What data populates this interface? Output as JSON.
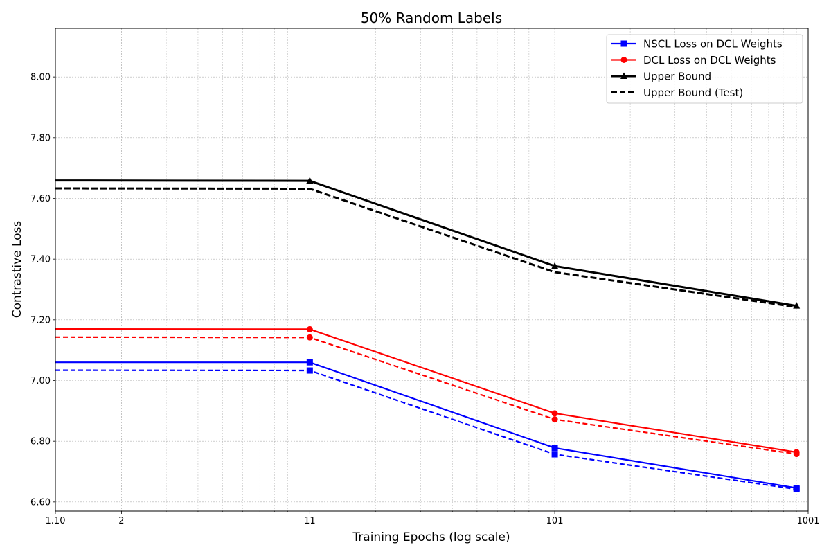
{
  "chart_data": {
    "type": "line",
    "title": "50% Random Labels",
    "xlabel": "Training Epochs (log scale)",
    "ylabel": "Contrastive Loss",
    "x_scale": "log",
    "xlim": [
      1.1,
      1001
    ],
    "ylim": [
      6.57,
      8.16
    ],
    "x_ticks": [
      {
        "value": 1.1,
        "label": "1.10"
      },
      {
        "value": 2,
        "label": "2"
      },
      {
        "value": 11,
        "label": "11"
      },
      {
        "value": 101,
        "label": "101"
      },
      {
        "value": 1001,
        "label": "1001"
      }
    ],
    "y_ticks": [
      {
        "value": 6.6,
        "label": "6.60"
      },
      {
        "value": 6.8,
        "label": "6.80"
      },
      {
        "value": 7.0,
        "label": "7.00"
      },
      {
        "value": 7.2,
        "label": "7.20"
      },
      {
        "value": 7.4,
        "label": "7.40"
      },
      {
        "value": 7.6,
        "label": "7.60"
      },
      {
        "value": 7.8,
        "label": "7.80"
      },
      {
        "value": 8.0,
        "label": "8.00"
      }
    ],
    "grid": true,
    "legend_position": "top-right",
    "series": [
      {
        "name": "NSCL Loss on DCL Weights",
        "color": "#0000ff",
        "style": "solid",
        "marker": "square",
        "legend": true,
        "x": [
          1.1,
          11,
          101,
          901
        ],
        "y": [
          7.06,
          7.06,
          6.778,
          6.646
        ]
      },
      {
        "name": "",
        "color": "#0000ff",
        "style": "dashed",
        "marker": "square",
        "legend": false,
        "x": [
          1.1,
          11,
          101,
          901
        ],
        "y": [
          7.034,
          7.033,
          6.757,
          6.642
        ]
      },
      {
        "name": "DCL Loss on DCL Weights",
        "color": "#ff0000",
        "style": "solid",
        "marker": "circle",
        "legend": true,
        "x": [
          1.1,
          11,
          101,
          901
        ],
        "y": [
          7.17,
          7.169,
          6.892,
          6.764
        ]
      },
      {
        "name": "",
        "color": "#ff0000",
        "style": "dashed",
        "marker": "circle",
        "legend": false,
        "x": [
          1.1,
          11,
          101,
          901
        ],
        "y": [
          7.143,
          7.142,
          6.872,
          6.758
        ]
      },
      {
        "name": "Upper Bound",
        "color": "#000000",
        "style": "solid",
        "marker": "triangle",
        "legend": true,
        "x": [
          1.1,
          11,
          101,
          901
        ],
        "y": [
          7.659,
          7.658,
          7.377,
          7.246
        ]
      },
      {
        "name": "Upper Bound (Test)",
        "color": "#000000",
        "style": "dashed",
        "marker": "none",
        "legend": true,
        "x": [
          1.1,
          11,
          101,
          901
        ],
        "y": [
          7.633,
          7.632,
          7.357,
          7.242
        ]
      }
    ]
  }
}
